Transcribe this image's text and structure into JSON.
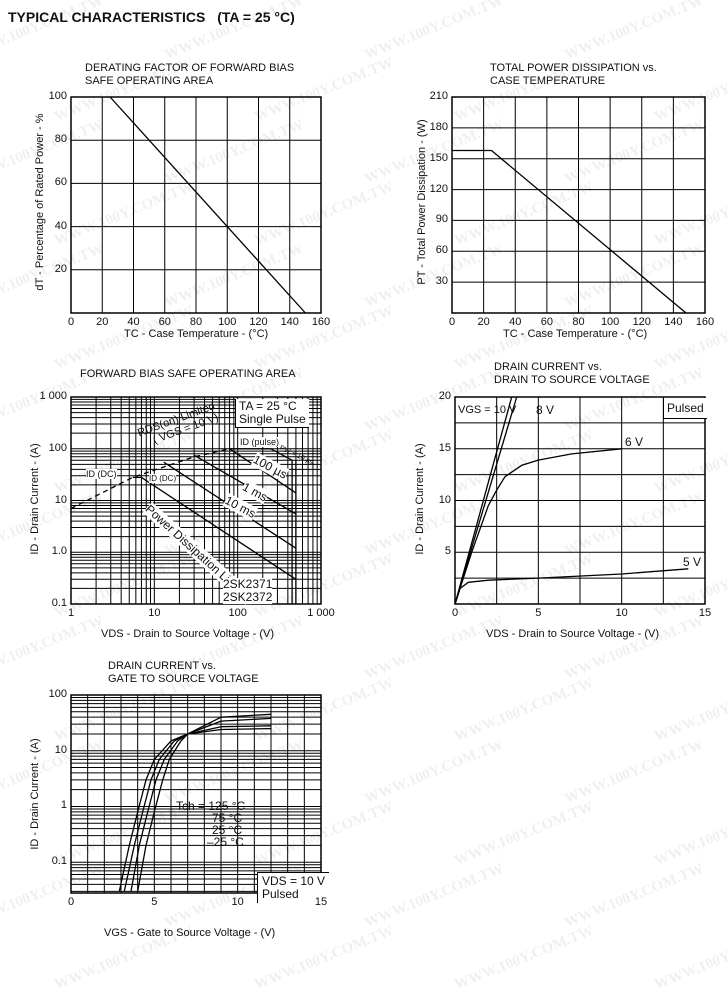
{
  "page": {
    "title": "TYPICAL CHARACTERISTICS",
    "condition": "(TA = 25 °C)",
    "watermark": "WWW.100Y.COM.TW"
  },
  "chart_data": [
    {
      "id": "c1",
      "type": "line",
      "title": [
        "DERATING FACTOR OF FORWARD BIAS",
        "SAFE OPERATING AREA"
      ],
      "xlabel": "TC - Case Temperature - (°C)",
      "ylabel": "dT - Percentage of Rated Power - %",
      "xscale": "linear",
      "yscale": "linear",
      "xlim": [
        0,
        160
      ],
      "ylim": [
        0,
        100
      ],
      "xticks": [
        0,
        20,
        40,
        60,
        80,
        100,
        120,
        140,
        160
      ],
      "xticklabels": [
        "0",
        "20",
        "40",
        "60",
        "80",
        "100",
        "120",
        "140",
        "160"
      ],
      "yticks": [
        20,
        40,
        60,
        80,
        100
      ],
      "yticklabels": [
        "20",
        "40",
        "60",
        "80",
        "100"
      ],
      "grid": true,
      "series": [
        {
          "points": [
            [
              25,
              100
            ],
            [
              150,
              0
            ]
          ]
        }
      ]
    },
    {
      "id": "c2",
      "type": "line",
      "title": [
        "TOTAL POWER DISSIPATION vs.",
        "CASE TEMPERATURE"
      ],
      "xlabel": "TC - Case Temperature - (°C)",
      "ylabel": "PT - Total Power Dissipation - (W)",
      "xscale": "linear",
      "yscale": "linear",
      "xlim": [
        0,
        160
      ],
      "ylim": [
        0,
        210
      ],
      "xticks": [
        0,
        20,
        40,
        60,
        80,
        100,
        120,
        140,
        160
      ],
      "xticklabels": [
        "0",
        "20",
        "40",
        "60",
        "80",
        "100",
        "120",
        "140",
        "160"
      ],
      "yticks": [
        30,
        60,
        90,
        120,
        150,
        180,
        210
      ],
      "yticklabels": [
        "30",
        "60",
        "90",
        "120",
        "150",
        "180",
        "210"
      ],
      "grid": true,
      "series": [
        {
          "points": [
            [
              0,
              158
            ],
            [
              25,
              158
            ],
            [
              148,
              0
            ]
          ]
        }
      ]
    },
    {
      "id": "c3",
      "type": "line",
      "title": [
        "FORWARD BIAS SAFE OPERATING AREA"
      ],
      "xlabel": "VDS - Drain to Source Voltage - (V)",
      "ylabel": "ID - Drain Current - (A)",
      "xscale": "log",
      "yscale": "log",
      "xlim": [
        1,
        1000
      ],
      "ylim": [
        0.1,
        1000
      ],
      "xticks": [
        1,
        10,
        100,
        1000
      ],
      "xticklabels": [
        "1",
        "10",
        "100",
        "1 000"
      ],
      "yticks": [
        0.1,
        1,
        10,
        100,
        1000
      ],
      "yticklabels": [
        "0.1",
        "1.0",
        "10",
        "100",
        "1 000"
      ],
      "grid": true,
      "series": [
        {
          "name": "RDS(on) Limited (VGS = 10 V)",
          "dashed": true,
          "points": [
            [
              1,
              7
            ],
            [
              5.5,
              28
            ],
            [
              30,
              70
            ],
            [
              80,
              100
            ]
          ]
        },
        {
          "name": "ID(DC)",
          "points": [
            [
              5.5,
              28
            ],
            [
              7,
              28
            ]
          ]
        },
        {
          "name": "Power Dissipation Limited",
          "points": [
            [
              7,
              28
            ],
            [
              500,
              0.3
            ]
          ]
        },
        {
          "name": "10 ms",
          "points": [
            [
              13,
              55
            ],
            [
              500,
              1.2
            ]
          ]
        },
        {
          "name": "1 ms",
          "points": [
            [
              30,
              75
            ],
            [
              500,
              5.5
            ]
          ]
        },
        {
          "name": "100 µs",
          "points": [
            [
              80,
              100
            ],
            [
              500,
              14
            ]
          ]
        },
        {
          "name": "ID(pulse)",
          "points": [
            [
              80,
              100
            ],
            [
              250,
              100
            ],
            [
              450,
              60
            ]
          ]
        },
        {
          "name": "2SK2371",
          "points": [
            [
              450,
              0.1
            ],
            [
              450,
              60
            ]
          ]
        },
        {
          "name": "2SK2372",
          "points": [
            [
              500,
              0.1
            ],
            [
              500,
              60
            ]
          ]
        }
      ],
      "annotations": {
        "conditions": [
          "TA = 25 °C",
          "Single Pulse"
        ],
        "rds_limited": [
          "RDS(on) Limited",
          "( VGS = 10 V)"
        ],
        "id_pulse": "ID (pulse)",
        "pw": "PW = 10 µs",
        "id_dc_left": "ID (DC)",
        "id_dc_inner": "ID (DC)",
        "t100us": "100 µs",
        "t1ms": "1 ms",
        "t10ms": "10 ms",
        "pd_limited": "Power Dissipation Limited",
        "part1": "2SK2371",
        "part2": "2SK2372"
      }
    },
    {
      "id": "c4",
      "type": "line",
      "title": [
        "DRAIN CURRENT vs.",
        "DRAIN TO SOURCE VOLTAGE"
      ],
      "xlabel": "VDS - Drain to Source Voltage - (V)",
      "ylabel": "ID - Drain Current - (A)",
      "xscale": "linear",
      "yscale": "linear",
      "xlim": [
        0,
        15
      ],
      "ylim": [
        0,
        20
      ],
      "xticks": [
        0,
        5,
        10,
        15
      ],
      "xticklabels": [
        "0",
        "5",
        "10",
        "15"
      ],
      "yticks": [
        5,
        10,
        15,
        20
      ],
      "yticklabels": [
        "5",
        "10",
        "15",
        "20"
      ],
      "grid": true,
      "series": [
        {
          "name": "VGS = 10 V",
          "points": [
            [
              0,
              0
            ],
            [
              3.4,
              20
            ]
          ]
        },
        {
          "name": "8 V",
          "points": [
            [
              0,
              0
            ],
            [
              3.7,
              20
            ]
          ]
        },
        {
          "name": "6 V",
          "points": [
            [
              0,
              0
            ],
            [
              1,
              5
            ],
            [
              2,
              9.5
            ],
            [
              2.5,
              11
            ],
            [
              3,
              12.3
            ],
            [
              4,
              13.4
            ],
            [
              5,
              13.9
            ],
            [
              7,
              14.5
            ],
            [
              10,
              15
            ]
          ]
        },
        {
          "name": "5 V",
          "points": [
            [
              0,
              0
            ],
            [
              0.3,
              1.5
            ],
            [
              0.8,
              2.1
            ],
            [
              2,
              2.3
            ],
            [
              5,
              2.5
            ],
            [
              10,
              2.9
            ],
            [
              14,
              3.4
            ]
          ]
        }
      ],
      "annotations": {
        "pulsed": "Pulsed"
      }
    },
    {
      "id": "c5",
      "type": "line",
      "title": [
        "DRAIN CURRENT vs.",
        "GATE TO SOURCE VOLTAGE"
      ],
      "xlabel": "VGS - Gate to Source Voltage - (V)",
      "ylabel": "ID - Drain Current - (A)",
      "xscale": "linear",
      "yscale": "log",
      "xlim": [
        0,
        15
      ],
      "ylim": [
        0.028,
        100
      ],
      "xticks": [
        0,
        5,
        10,
        15
      ],
      "xticklabels": [
        "0",
        "5",
        "10",
        "15"
      ],
      "yticks": [
        0.1,
        1,
        10,
        100
      ],
      "yticklabels": [
        "0.1",
        "1",
        "10",
        "100"
      ],
      "grid": true,
      "series": [
        {
          "name": "Tch = 125 °C",
          "points": [
            [
              2.9,
              0.03
            ],
            [
              3.5,
              0.2
            ],
            [
              4,
              0.8
            ],
            [
              4.5,
              3
            ],
            [
              5,
              7
            ],
            [
              6,
              15
            ],
            [
              7,
              20
            ],
            [
              9,
              24
            ],
            [
              12,
              25
            ]
          ]
        },
        {
          "name": "75 °C",
          "points": [
            [
              3.2,
              0.03
            ],
            [
              3.8,
              0.2
            ],
            [
              4.3,
              0.8
            ],
            [
              4.8,
              3
            ],
            [
              5.3,
              7
            ],
            [
              6.2,
              15
            ],
            [
              7,
              20
            ],
            [
              9,
              27
            ],
            [
              12,
              28
            ]
          ]
        },
        {
          "name": "25 °C",
          "points": [
            [
              3.6,
              0.03
            ],
            [
              4.1,
              0.2
            ],
            [
              4.6,
              0.8
            ],
            [
              5.1,
              3
            ],
            [
              5.6,
              7
            ],
            [
              6.4,
              15
            ],
            [
              7,
              20
            ],
            [
              9,
              34
            ],
            [
              12,
              38
            ]
          ]
        },
        {
          "name": "–25 °C",
          "points": [
            [
              4,
              0.03
            ],
            [
              4.5,
              0.2
            ],
            [
              5,
              0.8
            ],
            [
              5.5,
              3
            ],
            [
              5.9,
              7
            ],
            [
              6.6,
              15
            ],
            [
              7,
              20
            ],
            [
              9,
              40
            ],
            [
              12,
              45
            ]
          ]
        }
      ],
      "annotations": {
        "conditions": [
          "VDS = 10 V",
          "Pulsed"
        ]
      }
    }
  ]
}
